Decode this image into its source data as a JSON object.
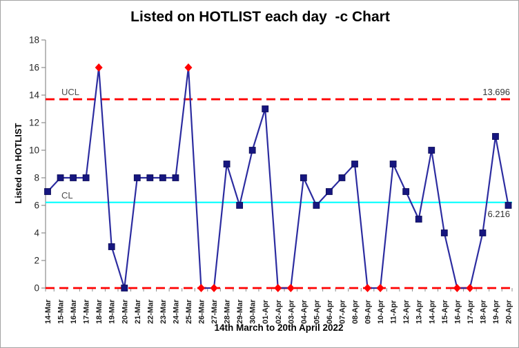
{
  "chart_data": {
    "type": "line",
    "title": "Listed on HOTLIST each day  -c Chart",
    "xlabel": "14th March to 20th April 2022",
    "ylabel": "Listed on HOTLIST",
    "ylim": [
      0,
      18
    ],
    "ytick_step": 2,
    "ytick_labels": [
      "0",
      "2",
      "4",
      "6",
      "8",
      "10",
      "12",
      "14",
      "16",
      "18"
    ],
    "grid": false,
    "legend": "none",
    "categories": [
      "14-Mar",
      "15-Mar",
      "16-Mar",
      "17-Mar",
      "18-Mar",
      "19-Mar",
      "20-Mar",
      "21-Mar",
      "22-Mar",
      "23-Mar",
      "24-Mar",
      "25-Mar",
      "26-Mar",
      "27-Mar",
      "28-Mar",
      "29-Mar",
      "30-Mar",
      "01-Apr",
      "02-Apr",
      "03-Apr",
      "04-Apr",
      "05-Apr",
      "06-Apr",
      "07-Apr",
      "08-Apr",
      "09-Apr",
      "10-Apr",
      "11-Apr",
      "12-Apr",
      "13-Apr",
      "14-Apr",
      "15-Apr",
      "16-Apr",
      "17-Apr",
      "18-Apr",
      "19-Apr",
      "20-Apr"
    ],
    "series": [
      {
        "name": "Listed on HOTLIST",
        "values": [
          7,
          8,
          8,
          8,
          16,
          3,
          0,
          8,
          8,
          8,
          8,
          16,
          0,
          0,
          9,
          6,
          10,
          13,
          0,
          0,
          8,
          6,
          7,
          8,
          9,
          0,
          0,
          9,
          7,
          5,
          10,
          4,
          0,
          0,
          4,
          11,
          6
        ]
      }
    ],
    "out_of_control_indices": [
      4,
      11,
      12,
      13,
      18,
      19,
      25,
      26,
      32,
      33
    ],
    "control_limits": {
      "ucl": {
        "label": "UCL",
        "value": 13.696,
        "annotation": "13.696"
      },
      "cl": {
        "label": "CL",
        "value": 6.216,
        "annotation": "6.216"
      },
      "lcl": {
        "value": 0
      }
    },
    "colors": {
      "series_line": "#2c2ca0",
      "marker": "#16167f",
      "out_of_control_marker": "#ff0000",
      "limit_line": "#ff0000",
      "center_line": "#00ffff",
      "axis": "#8c8c8c"
    }
  }
}
